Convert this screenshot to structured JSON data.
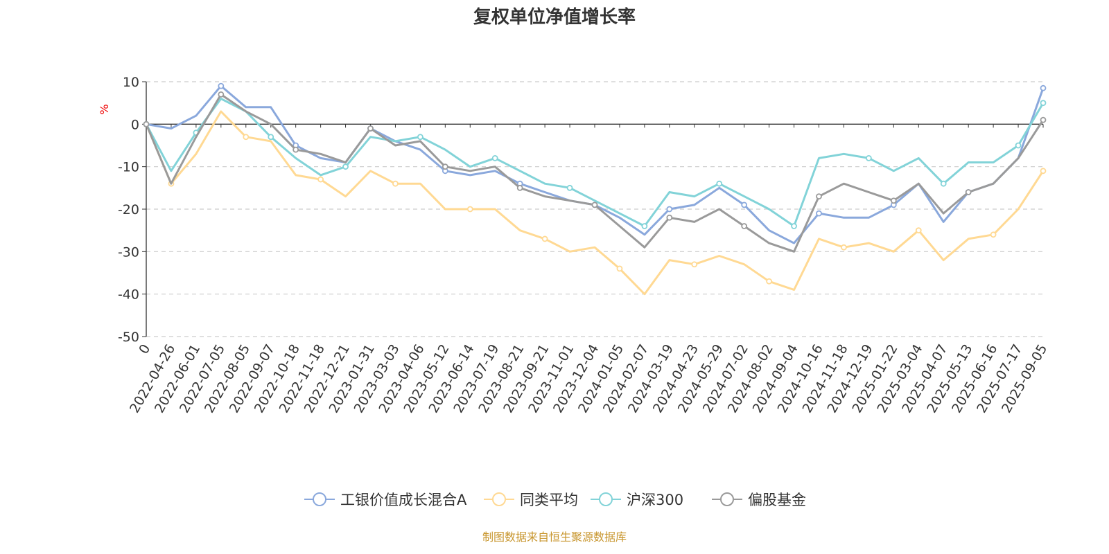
{
  "chart_data": {
    "type": "line",
    "title": "复权单位净值增长率",
    "ylabel": "%",
    "ylim": [
      -50,
      10
    ],
    "yticks": [
      10,
      0,
      -10,
      -20,
      -30,
      -40,
      -50
    ],
    "grid": true,
    "legend_position": "bottom",
    "categories": [
      "0",
      "2022-04-26",
      "2022-06-01",
      "2022-07-05",
      "2022-08-05",
      "2022-09-07",
      "2022-10-18",
      "2022-11-18",
      "2022-12-21",
      "2023-01-31",
      "2023-03-03",
      "2023-04-06",
      "2023-05-12",
      "2023-06-14",
      "2023-07-19",
      "2023-08-21",
      "2023-09-21",
      "2023-11-01",
      "2023-12-04",
      "2024-01-05",
      "2024-02-07",
      "2024-03-19",
      "2024-04-23",
      "2024-05-29",
      "2024-07-02",
      "2024-08-02",
      "2024-09-04",
      "2024-10-16",
      "2024-11-18",
      "2024-12-19",
      "2025-01-22",
      "2025-03-04",
      "2025-04-07",
      "2025-05-13",
      "2025-06-16",
      "2025-07-17",
      "2025-09-05"
    ],
    "series": [
      {
        "name": "工银价值成长混合A",
        "color": "#8aa8dc",
        "values": [
          0,
          -1,
          2,
          9,
          4,
          4,
          -5,
          -8,
          -9,
          -1,
          -4,
          -6,
          -11,
          -12,
          -11,
          -14,
          -16,
          -18,
          -19,
          -22,
          -26,
          -20,
          -19,
          -15,
          -19,
          -25,
          -28,
          -21,
          -22,
          -22,
          -19,
          -14,
          -23,
          -16,
          -14,
          -8,
          8.5
        ]
      },
      {
        "name": "同类平均",
        "color": "#ffd993",
        "values": [
          0,
          -14,
          -7,
          3,
          -3,
          -4,
          -12,
          -13,
          -17,
          -11,
          -14,
          -14,
          -20,
          -20,
          -20,
          -25,
          -27,
          -30,
          -29,
          -34,
          -40,
          -32,
          -33,
          -31,
          -33,
          -37,
          -39,
          -27,
          -29,
          -28,
          -30,
          -25,
          -32,
          -27,
          -26,
          -20,
          -11
        ]
      },
      {
        "name": "沪深300",
        "color": "#82d3d8",
        "values": [
          0,
          -11,
          -2,
          6,
          3,
          -3,
          -8,
          -12,
          -10,
          -3,
          -4,
          -3,
          -6,
          -10,
          -8,
          -11,
          -14,
          -15,
          -18,
          -21,
          -24,
          -16,
          -17,
          -14,
          -17,
          -20,
          -24,
          -8,
          -7,
          -8,
          -11,
          -8,
          -14,
          -9,
          -9,
          -5,
          5
        ]
      },
      {
        "name": "偏股基金",
        "color": "#9a9a9a",
        "values": [
          0,
          -14,
          -3,
          7,
          3,
          0,
          -6,
          -7,
          -9,
          -1,
          -5,
          -4,
          -10,
          -11,
          -10,
          -15,
          -17,
          -18,
          -19,
          -24,
          -29,
          -22,
          -23,
          -20,
          -24,
          -28,
          -30,
          -17,
          -14,
          -16,
          -18,
          -14,
          -21,
          -16,
          -14,
          -8,
          1
        ]
      }
    ]
  },
  "footer": "制图数据来自恒生聚源数据库"
}
